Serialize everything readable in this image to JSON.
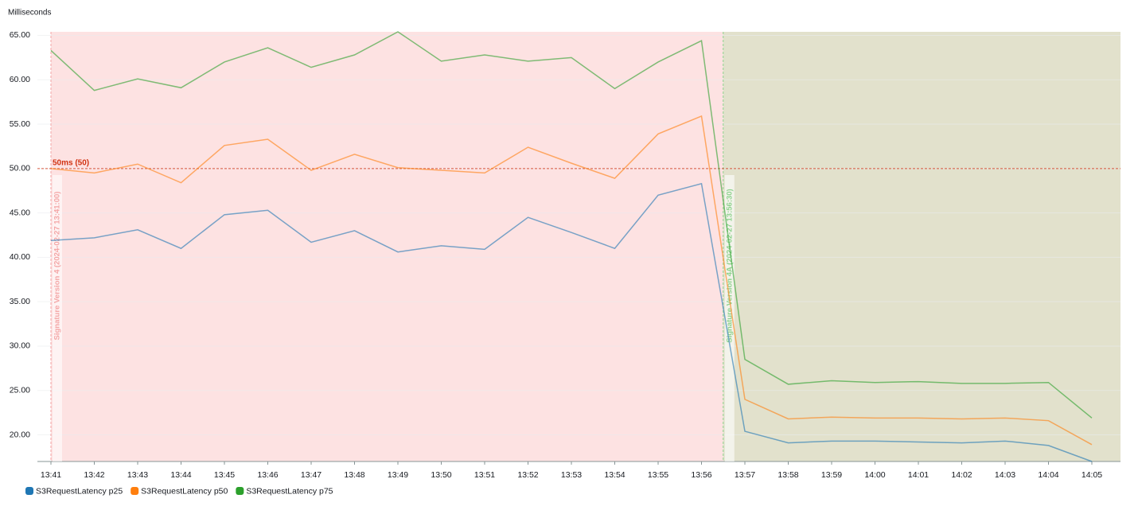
{
  "chart_data": {
    "type": "line",
    "y_label": "Milliseconds",
    "categories": [
      "13:41",
      "13:42",
      "13:43",
      "13:44",
      "13:45",
      "13:46",
      "13:47",
      "13:48",
      "13:49",
      "13:50",
      "13:51",
      "13:52",
      "13:53",
      "13:54",
      "13:55",
      "13:56",
      "13:57",
      "13:58",
      "13:59",
      "14:00",
      "14:01",
      "14:02",
      "14:03",
      "14:04",
      "14:05"
    ],
    "series": [
      {
        "name": "S3RequestLatency p25",
        "color": "#1f77b4",
        "values": [
          41.9,
          42.2,
          43.1,
          41.0,
          44.8,
          45.3,
          41.7,
          43.0,
          40.6,
          41.3,
          40.9,
          44.5,
          42.8,
          41.0,
          47.0,
          48.3,
          20.4,
          19.1,
          19.3,
          19.3,
          19.2,
          19.1,
          19.3,
          18.8,
          17.0
        ]
      },
      {
        "name": "S3RequestLatency p50",
        "color": "#ff7f0e",
        "values": [
          50.0,
          49.5,
          50.5,
          48.4,
          52.6,
          53.3,
          49.8,
          51.6,
          50.1,
          49.8,
          49.5,
          52.4,
          50.6,
          48.9,
          53.9,
          55.9,
          24.0,
          21.8,
          22.0,
          21.9,
          21.9,
          21.8,
          21.9,
          21.6,
          18.9
        ]
      },
      {
        "name": "S3RequestLatency p75",
        "color": "#2ca02c",
        "values": [
          63.3,
          58.8,
          60.1,
          59.1,
          62.0,
          63.6,
          61.4,
          62.8,
          65.4,
          62.1,
          62.8,
          62.1,
          62.5,
          59.0,
          62.0,
          64.4,
          28.5,
          25.7,
          26.1,
          25.9,
          26.0,
          25.8,
          25.8,
          25.9,
          21.9
        ]
      }
    ],
    "ylim": [
      17,
      65.4
    ],
    "yticks": [
      {
        "value": 65,
        "label": "65.00"
      },
      {
        "value": 60,
        "label": "60.00"
      },
      {
        "value": 55,
        "label": "55.00"
      },
      {
        "value": 50,
        "label": "50.00"
      },
      {
        "value": 45,
        "label": "45.00"
      },
      {
        "value": 40,
        "label": "40.00"
      },
      {
        "value": 35,
        "label": "35.00"
      },
      {
        "value": 30,
        "label": "30.00"
      },
      {
        "value": 25,
        "label": "25.00"
      },
      {
        "value": 20,
        "label": "20.00"
      }
    ],
    "grid": true,
    "horizontal_annotations": [
      {
        "label": "50ms (50)",
        "value": 50,
        "color": "#d13212"
      }
    ],
    "vertical_annotations": [
      {
        "label": "Signature Version 4 (2024-02-27 13:41:00)",
        "color": "#f4a6a6",
        "fill": "#fde2e2"
      },
      {
        "label": "Signature Version 4A (2024-02-27 13:56:30)",
        "color": "#8ed38e",
        "fill": "#e2e1cc"
      }
    ]
  }
}
